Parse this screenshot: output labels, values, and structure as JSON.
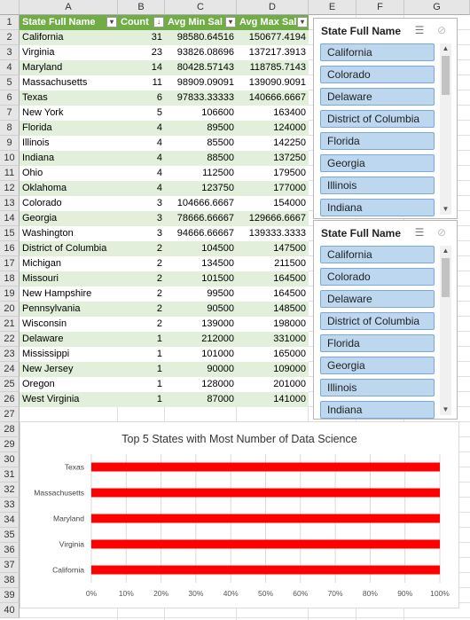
{
  "columns": [
    "A",
    "B",
    "C",
    "D",
    "E",
    "F",
    "G"
  ],
  "rows": [
    "1",
    "2",
    "3",
    "4",
    "5",
    "6",
    "7",
    "8",
    "9",
    "10",
    "11",
    "12",
    "13",
    "14",
    "15",
    "16",
    "17",
    "18",
    "19",
    "20",
    "21",
    "22",
    "23",
    "24",
    "25",
    "26",
    "27",
    "28",
    "29",
    "30",
    "31",
    "32",
    "33",
    "34",
    "35",
    "36",
    "37",
    "38",
    "39",
    "40"
  ],
  "table": {
    "headers": [
      "State Full Name",
      "Count",
      "Avg Min Sal",
      "Avg Max Sal"
    ],
    "rows": [
      [
        "California",
        "31",
        "98580.64516",
        "150677.4194"
      ],
      [
        "Virginia",
        "23",
        "93826.08696",
        "137217.3913"
      ],
      [
        "Maryland",
        "14",
        "80428.57143",
        "118785.7143"
      ],
      [
        "Massachusetts",
        "11",
        "98909.09091",
        "139090.9091"
      ],
      [
        "Texas",
        "6",
        "97833.33333",
        "140666.6667"
      ],
      [
        "New York",
        "5",
        "106600",
        "163400"
      ],
      [
        "Florida",
        "4",
        "89500",
        "124000"
      ],
      [
        "Illinois",
        "4",
        "85500",
        "142250"
      ],
      [
        "Indiana",
        "4",
        "88500",
        "137250"
      ],
      [
        "Ohio",
        "4",
        "112500",
        "179500"
      ],
      [
        "Oklahoma",
        "4",
        "123750",
        "177000"
      ],
      [
        "Colorado",
        "3",
        "104666.6667",
        "154000"
      ],
      [
        "Georgia",
        "3",
        "78666.66667",
        "129666.6667"
      ],
      [
        "Washington",
        "3",
        "94666.66667",
        "139333.3333"
      ],
      [
        "District of Columbia",
        "2",
        "104500",
        "147500"
      ],
      [
        "Michigan",
        "2",
        "134500",
        "211500"
      ],
      [
        "Missouri",
        "2",
        "101500",
        "164500"
      ],
      [
        "New Hampshire",
        "2",
        "99500",
        "164500"
      ],
      [
        "Pennsylvania",
        "2",
        "90500",
        "148500"
      ],
      [
        "Wisconsin",
        "2",
        "139000",
        "198000"
      ],
      [
        "Delaware",
        "1",
        "212000",
        "331000"
      ],
      [
        "Mississippi",
        "1",
        "101000",
        "165000"
      ],
      [
        "New Jersey",
        "1",
        "90000",
        "109000"
      ],
      [
        "Oregon",
        "1",
        "128000",
        "201000"
      ],
      [
        "West Virginia",
        "1",
        "87000",
        "141000"
      ]
    ]
  },
  "slicers": [
    {
      "title": "State Full Name",
      "items": [
        "California",
        "Colorado",
        "Delaware",
        "District of Columbia",
        "Florida",
        "Georgia",
        "Illinois",
        "Indiana"
      ]
    },
    {
      "title": "State Full Name",
      "items": [
        "California",
        "Colorado",
        "Delaware",
        "District of Columbia",
        "Florida",
        "Georgia",
        "Illinois",
        "Indiana"
      ]
    }
  ],
  "icons": {
    "multi_select": "multi-select-icon",
    "clear_filter": "clear-filter-icon",
    "sort": "sort-descending-icon",
    "filter": "filter-dropdown-icon"
  },
  "colors": {
    "header_green": "#70ad47",
    "band_green": "#e2efda",
    "bar_red": "#ff0000",
    "slicer_item": "#bdd7ee"
  },
  "chart_data": {
    "type": "bar",
    "orientation": "horizontal",
    "title": "Top 5 States with Most Number of Data Science",
    "categories": [
      "Texas",
      "Massachusetts",
      "Maryland",
      "Virginia",
      "California"
    ],
    "values": [
      100,
      100,
      100,
      100,
      100
    ],
    "xticks": [
      "0%",
      "10%",
      "20%",
      "30%",
      "40%",
      "50%",
      "60%",
      "70%",
      "80%",
      "90%",
      "100%"
    ],
    "xlim": [
      0,
      100
    ],
    "grid": true,
    "legend": "none"
  }
}
